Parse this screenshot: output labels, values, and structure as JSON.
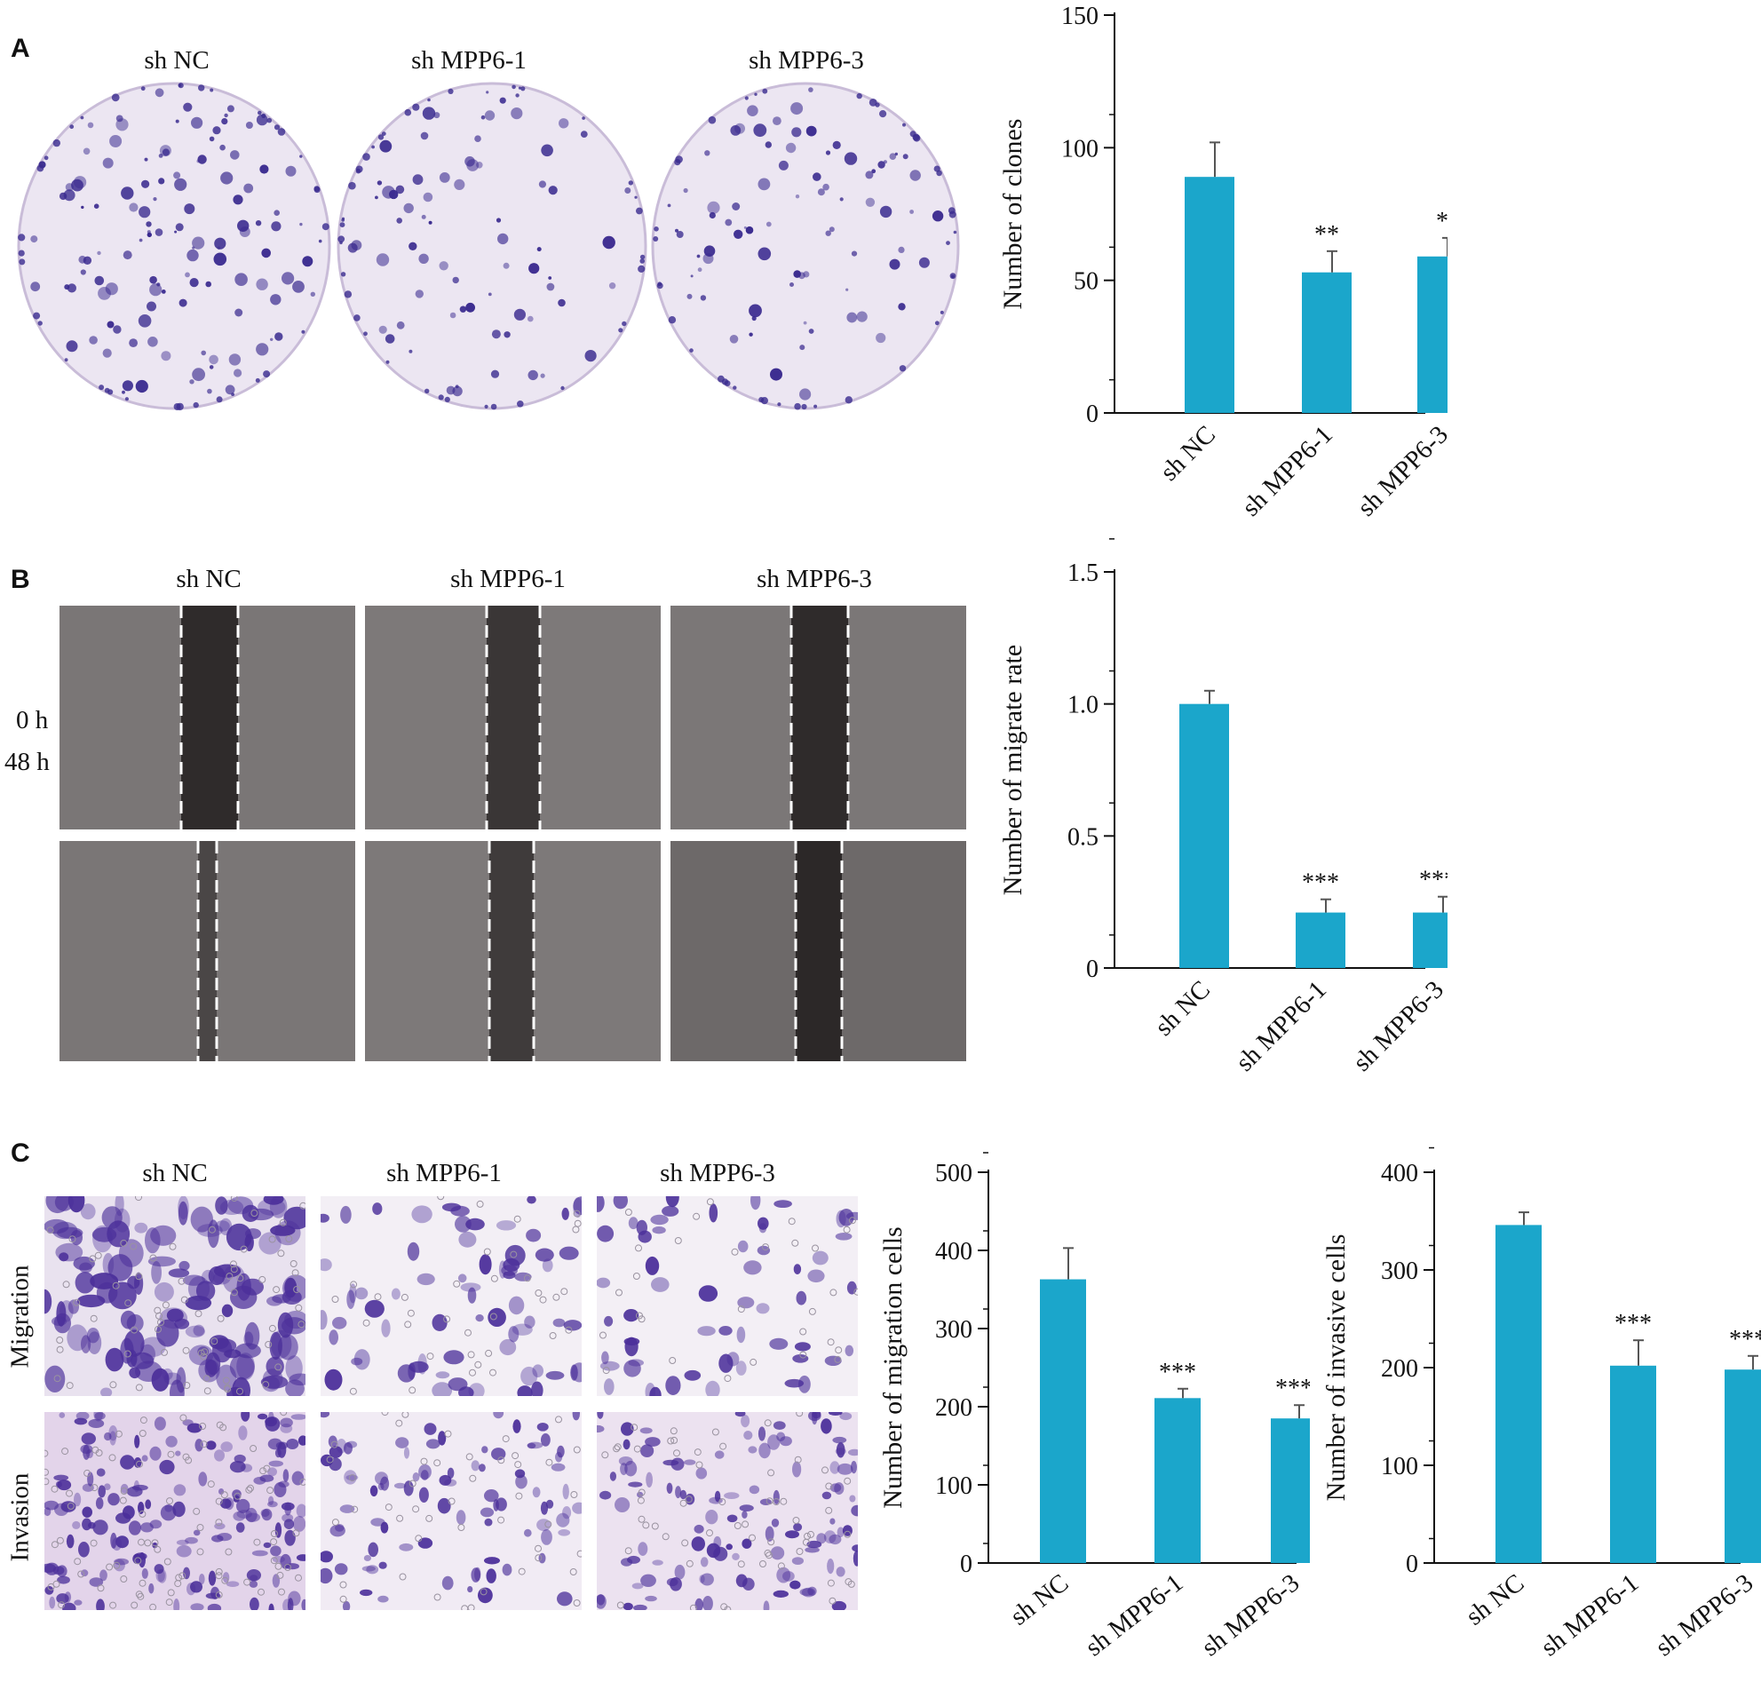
{
  "panel_letters": [
    "A",
    "B",
    "C"
  ],
  "colors": {
    "bar": "#1ba6cb",
    "crystal_violet": "#3a2a8f",
    "dish_bg": "#ece6f2",
    "scratch_bg": "#6f6b6b",
    "stain_bg": "#f1ecf3"
  },
  "panel_a": {
    "group_labels": [
      "sh NC",
      "sh MPP6-1",
      "sh MPP6-3"
    ],
    "images": [
      "culture-dish-sh-nc",
      "culture-dish-sh-mpp6-1",
      "culture-dish-sh-mpp6-3"
    ]
  },
  "panel_b": {
    "group_labels": [
      "sh NC",
      "sh MPP6-1",
      "sh MPP6-3"
    ],
    "row_labels": [
      "0 h",
      "48 h"
    ]
  },
  "panel_c": {
    "group_labels": [
      "sh NC",
      "sh MPP6-1",
      "sh MPP6-3"
    ],
    "row_labels": [
      "Migration",
      "Invasion"
    ]
  },
  "chart_data": [
    {
      "id": "clones",
      "type": "bar",
      "categories": [
        "sh NC",
        "sh MPP6-1",
        "sh MPP6-3"
      ],
      "values": [
        89,
        53,
        59
      ],
      "errors": [
        13,
        8,
        7
      ],
      "significance": [
        "",
        "**",
        "*"
      ],
      "ylabel": "Number of clones",
      "ylim": [
        0,
        150
      ],
      "yticks": [
        0,
        50,
        100,
        150
      ]
    },
    {
      "id": "migrate-rate",
      "type": "bar",
      "categories": [
        "sh NC",
        "sh MPP6-1",
        "sh MPP6-3"
      ],
      "values": [
        1.0,
        0.21,
        0.21
      ],
      "errors": [
        0.05,
        0.05,
        0.06
      ],
      "significance": [
        "",
        "***",
        "***"
      ],
      "ylabel": "Number of migrate rate",
      "ylim": [
        0,
        1.5
      ],
      "yticks": [
        0,
        0.5,
        1.0,
        1.5
      ],
      "tick_labels": [
        "0",
        "0.5",
        "1.0",
        "1.5"
      ]
    },
    {
      "id": "migration-cells",
      "type": "bar",
      "categories": [
        "sh NC",
        "sh MPP6-1",
        "sh MPP6-3"
      ],
      "values": [
        363,
        211,
        185
      ],
      "errors": [
        40,
        12,
        17
      ],
      "significance": [
        "",
        "***",
        "***"
      ],
      "ylabel": "Number of migration cells",
      "ylim": [
        0,
        500
      ],
      "yticks": [
        0,
        100,
        200,
        300,
        400,
        500
      ]
    },
    {
      "id": "invasive-cells",
      "type": "bar",
      "categories": [
        "sh NC",
        "sh MPP6-1",
        "sh MPP6-3"
      ],
      "values": [
        346,
        202,
        198
      ],
      "errors": [
        13,
        26,
        14
      ],
      "significance": [
        "",
        "***",
        "***"
      ],
      "ylabel": "Number of invasive cells",
      "ylim": [
        0,
        400
      ],
      "yticks": [
        0,
        100,
        200,
        300,
        400
      ]
    }
  ]
}
